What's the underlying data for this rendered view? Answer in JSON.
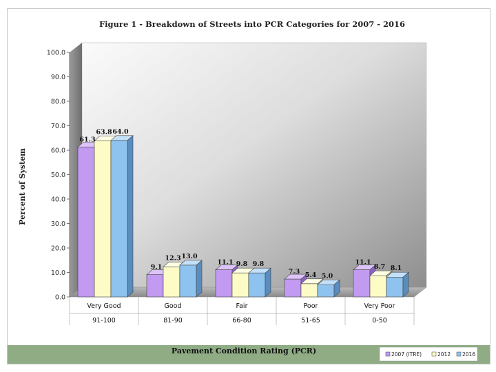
{
  "chart_data": {
    "type": "bar",
    "title": "Figure 1 -  Breakdown of Streets into PCR Categories for 2007 - 2016",
    "ylabel": "Percent of System",
    "xlabel": "Pavement Condition Rating (PCR)",
    "ylim": [
      0,
      100
    ],
    "yticks": [
      "0.0",
      "10.0",
      "20.0",
      "30.0",
      "40.0",
      "50.0",
      "60.0",
      "70.0",
      "80.0",
      "90.0",
      "100.0"
    ],
    "categories": [
      "Very Good",
      "Good",
      "Fair",
      "Poor",
      "Very Poor"
    ],
    "ranges": [
      "91-100",
      "81-90",
      "66-80",
      "51-65",
      "0-50"
    ],
    "series": [
      {
        "name": "2007 (ITRE)",
        "values": [
          61.3,
          9.1,
          11.1,
          7.3,
          11.1
        ],
        "value_labels": [
          "61.3",
          "9.1",
          "11.1",
          "7.3",
          "11.1"
        ],
        "color": "#c29af2",
        "side": "#8c63c4",
        "top": "#dcc3f8"
      },
      {
        "name": "2012",
        "values": [
          63.8,
          12.3,
          9.8,
          5.4,
          8.7
        ],
        "value_labels": [
          "63.8",
          "12.3",
          "9.8",
          "5.4",
          "8.7"
        ],
        "color": "#fdfcc6",
        "side": "#c8c78c",
        "top": "#fefee4"
      },
      {
        "name": "2016",
        "values": [
          64.0,
          13.0,
          9.8,
          5.0,
          8.1
        ],
        "value_labels": [
          "64.0",
          "13.0",
          "9.8",
          "5.0",
          "8.1"
        ],
        "color": "#8fc3ef",
        "side": "#5a8cbd",
        "top": "#c4e0f8"
      }
    ],
    "grid": false,
    "legend_position": "bottom-right"
  },
  "colors": {
    "wall_light": "#f4f4f4",
    "wall_dark": "#8e8e8e",
    "footer_band": "#8fac85"
  }
}
